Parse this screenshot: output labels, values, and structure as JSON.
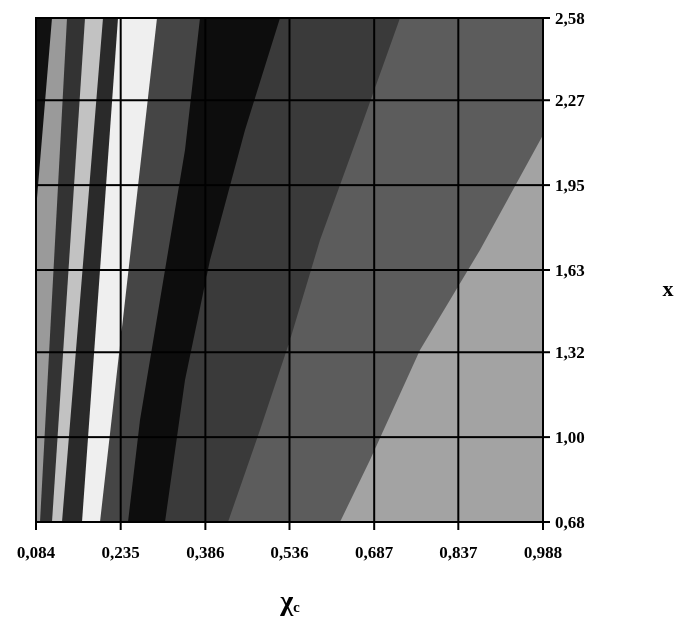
{
  "chart_data": {
    "type": "contour",
    "xlabel": {
      "symbol": "χ",
      "subscript": "c"
    },
    "ylabel": "x",
    "xlim": [
      0.084,
      0.988
    ],
    "ylim": [
      0.68,
      2.58
    ],
    "xticks": [
      {
        "value": 0.084,
        "label": "0,084"
      },
      {
        "value": 0.235,
        "label": "0,235"
      },
      {
        "value": 0.386,
        "label": "0,386"
      },
      {
        "value": 0.536,
        "label": "0,536"
      },
      {
        "value": 0.687,
        "label": "0,687"
      },
      {
        "value": 0.837,
        "label": "0,837"
      },
      {
        "value": 0.988,
        "label": "0,988"
      }
    ],
    "yticks": [
      {
        "value": 0.68,
        "label": "0,68"
      },
      {
        "value": 1.0,
        "label": "1,00"
      },
      {
        "value": 1.32,
        "label": "1,32"
      },
      {
        "value": 1.63,
        "label": "1,63"
      },
      {
        "value": 1.95,
        "label": "1,95"
      },
      {
        "value": 2.27,
        "label": "2,27"
      },
      {
        "value": 2.58,
        "label": "2,58"
      }
    ],
    "grid": true
  }
}
